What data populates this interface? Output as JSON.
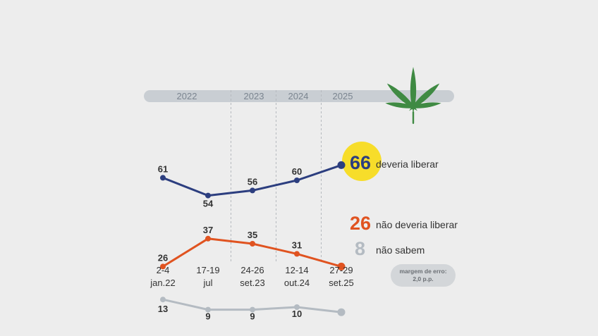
{
  "years": [
    "2022",
    "2023",
    "2024",
    "2025"
  ],
  "date_lines": [
    [
      "2-4",
      "jan.22"
    ],
    [
      "17-19",
      "jul"
    ],
    [
      "24-26",
      "set.23"
    ],
    [
      "12-14",
      "out.24"
    ],
    [
      "27-29",
      "set.25"
    ]
  ],
  "note": {
    "line1": "margem de erro:",
    "line2": "2,0 p.p."
  },
  "icons": {
    "decoration": "cannabis-leaf-icon"
  },
  "colors": {
    "background": "#ededed",
    "year_band": "#c9ced3",
    "series_deveria_liberar": "#2c3e7f",
    "series_nao_deveria_liberar": "#e05320",
    "series_nao_sabem": "#b4bbc2",
    "highlight": "#f7dd2a",
    "leaf": "#3f8a43"
  },
  "chart_data": {
    "type": "line",
    "categories": [
      "2-4 jan.22",
      "17-19 jul",
      "24-26 set.23",
      "12-14 out.24",
      "27-29 set.25"
    ],
    "series": [
      {
        "name": "deveria liberar",
        "values": [
          61,
          54,
          56,
          60,
          66
        ]
      },
      {
        "name": "não deveria liberar",
        "values": [
          26,
          37,
          35,
          31,
          26
        ]
      },
      {
        "name": "não sabem",
        "values": [
          13,
          9,
          9,
          10,
          8
        ]
      }
    ],
    "ylim": [
      0,
      100
    ],
    "grid": false,
    "legend": "end-of-line labels"
  }
}
